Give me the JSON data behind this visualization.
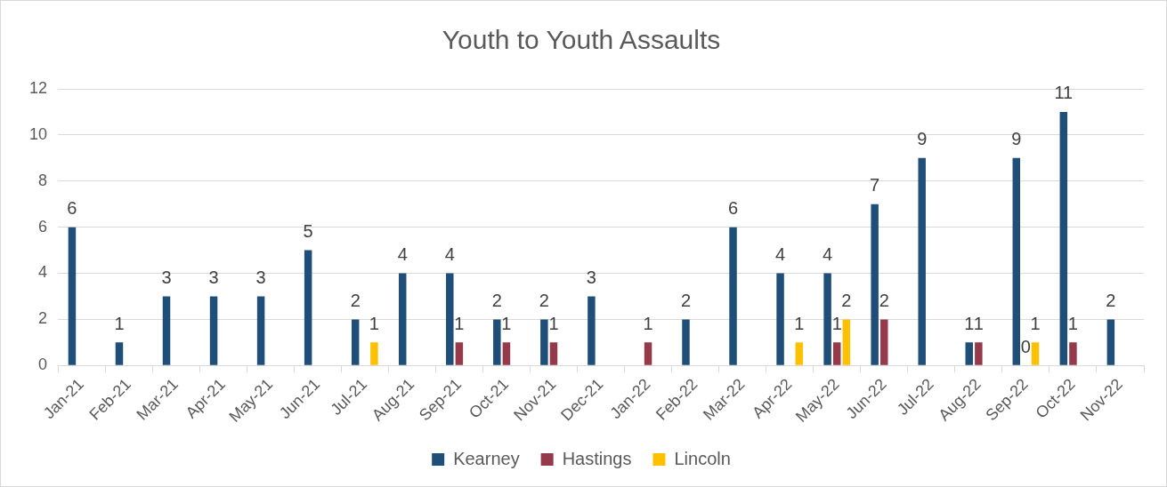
{
  "chart_data": {
    "type": "bar",
    "title": "Youth to Youth Assaults",
    "categories": [
      "Jan-21",
      "Feb-21",
      "Mar-21",
      "Apr-21",
      "May-21",
      "Jun-21",
      "Jul-21",
      "Aug-21",
      "Sep-21",
      "Oct-21",
      "Nov-21",
      "Dec-21",
      "Jan-22",
      "Feb-22",
      "Mar-22",
      "Apr-22",
      "May-22",
      "Jun-22",
      "Jul-22",
      "Aug-22",
      "Sep-22",
      "Oct-22",
      "Nov-22"
    ],
    "series": [
      {
        "name": "Kearney",
        "color": "#1f4e79",
        "values": [
          6,
          1,
          3,
          3,
          3,
          5,
          2,
          4,
          4,
          2,
          2,
          3,
          null,
          2,
          6,
          4,
          4,
          7,
          9,
          1,
          9,
          11,
          2
        ]
      },
      {
        "name": "Hastings",
        "color": "#953a4a",
        "values": [
          null,
          null,
          null,
          null,
          null,
          null,
          null,
          null,
          1,
          1,
          1,
          null,
          1,
          null,
          null,
          null,
          1,
          2,
          null,
          1,
          0,
          1,
          null
        ]
      },
      {
        "name": "Lincoln",
        "color": "#ffc000",
        "values": [
          null,
          null,
          null,
          null,
          null,
          null,
          1,
          null,
          null,
          null,
          null,
          null,
          null,
          null,
          null,
          1,
          2,
          null,
          null,
          null,
          1,
          null,
          null
        ]
      }
    ],
    "ylim": [
      0,
      12
    ],
    "yticks": [
      0,
      2,
      4,
      6,
      8,
      10,
      12
    ],
    "grid": "y",
    "legend": "bottom",
    "data_labels": true
  }
}
